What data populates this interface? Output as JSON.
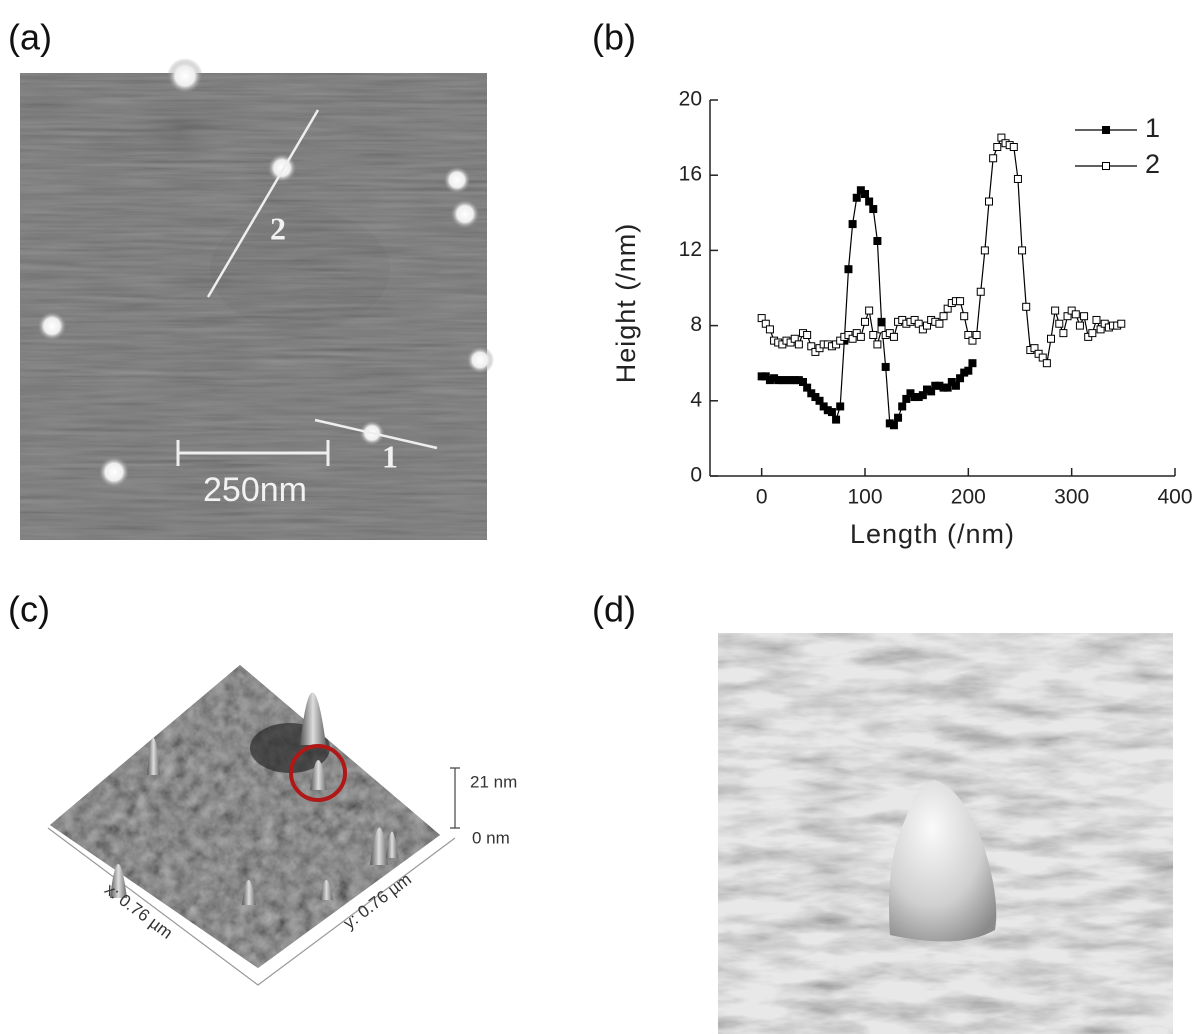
{
  "panels": {
    "a": "(a)",
    "b": "(b)",
    "c": "(c)",
    "d": "(d)"
  },
  "panel_a": {
    "line_1": "1",
    "line_2": "2",
    "scale_bar": "250nm"
  },
  "panel_c": {
    "z_max": "21 nm",
    "z_min": "0 nm",
    "x_size": "x: 0.76 µm",
    "y_size": "y: 0.76 µm"
  },
  "chart_data": {
    "type": "line",
    "xlabel": "Length (/nm)",
    "ylabel": "Height (/nm)",
    "xlim": [
      -50,
      400
    ],
    "xticks": [
      0,
      100,
      200,
      300,
      400
    ],
    "ylim": [
      0,
      20
    ],
    "yticks": [
      0,
      4,
      8,
      12,
      16,
      20
    ],
    "legend": "upper right",
    "series": [
      {
        "name": "1",
        "color": "#000000",
        "marker": "filled-square",
        "x": [
          0,
          4,
          8,
          12,
          16,
          20,
          24,
          28,
          32,
          36,
          40,
          44,
          48,
          52,
          56,
          60,
          64,
          68,
          72,
          76,
          80,
          84,
          88,
          92,
          96,
          100,
          104,
          108,
          112,
          116,
          120,
          124,
          128,
          132,
          136,
          140,
          144,
          148,
          152,
          156,
          160,
          164,
          168,
          172,
          176,
          180,
          184,
          188,
          192,
          196,
          200,
          204
        ],
        "values": [
          5.3,
          5.3,
          5.1,
          5.2,
          5.1,
          5.1,
          5.1,
          5.1,
          5.1,
          5.1,
          5.0,
          4.7,
          4.4,
          4.2,
          4.0,
          3.7,
          3.5,
          3.4,
          3.0,
          3.7,
          7.2,
          11.0,
          13.4,
          14.8,
          15.2,
          15.0,
          14.6,
          14.2,
          12.5,
          8.2,
          5.8,
          2.8,
          2.7,
          3.1,
          3.7,
          4.1,
          4.4,
          4.2,
          4.2,
          4.3,
          4.6,
          4.5,
          4.8,
          4.8,
          4.7,
          4.7,
          5.0,
          4.8,
          5.2,
          5.5,
          5.6,
          6.0
        ]
      },
      {
        "name": "2",
        "color": "#000000",
        "marker": "open-square",
        "x": [
          0,
          4,
          8,
          12,
          16,
          20,
          24,
          28,
          32,
          36,
          40,
          44,
          48,
          52,
          56,
          60,
          64,
          68,
          72,
          76,
          80,
          84,
          88,
          92,
          96,
          100,
          104,
          108,
          112,
          116,
          120,
          124,
          128,
          132,
          136,
          140,
          144,
          148,
          152,
          156,
          160,
          164,
          168,
          172,
          176,
          180,
          184,
          188,
          192,
          196,
          200,
          204,
          208,
          212,
          216,
          220,
          224,
          228,
          232,
          236,
          240,
          244,
          248,
          252,
          256,
          260,
          264,
          268,
          272,
          276,
          280,
          284,
          288,
          292,
          296,
          300,
          304,
          308,
          312,
          316,
          320,
          324,
          328,
          332,
          336,
          340,
          344,
          348
        ],
        "values": [
          8.4,
          8.1,
          7.8,
          7.2,
          7.1,
          7.0,
          7.2,
          7.1,
          7.3,
          7.0,
          7.6,
          7.5,
          6.9,
          6.6,
          6.8,
          7.0,
          7.0,
          6.9,
          7.0,
          7.2,
          7.4,
          7.5,
          7.3,
          7.6,
          7.4,
          8.2,
          8.8,
          7.5,
          7.0,
          7.8,
          7.5,
          7.6,
          7.4,
          8.2,
          8.3,
          8.1,
          8.2,
          8.3,
          8.1,
          7.8,
          8.0,
          8.3,
          8.2,
          8.1,
          8.5,
          8.9,
          9.2,
          9.3,
          9.3,
          8.5,
          7.5,
          7.2,
          7.5,
          9.8,
          12.0,
          14.6,
          16.9,
          17.5,
          18.0,
          17.7,
          17.6,
          17.5,
          15.8,
          12.0,
          9.0,
          6.7,
          6.8,
          6.5,
          6.3,
          6.0,
          7.3,
          8.8,
          8.1,
          7.6,
          8.5,
          8.8,
          8.6,
          8.0,
          8.5,
          7.4,
          7.6,
          8.3,
          7.8,
          8.1,
          7.9,
          8.0,
          8.0,
          8.1
        ]
      }
    ]
  }
}
